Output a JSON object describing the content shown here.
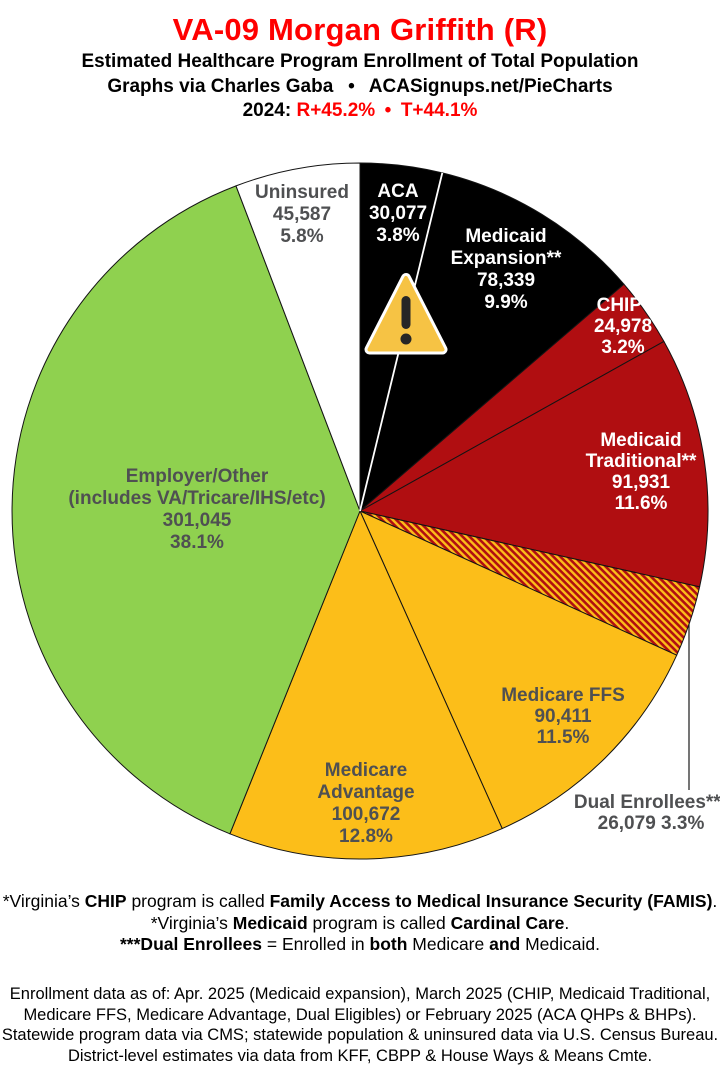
{
  "header": {
    "title": "VA-09 Morgan Griffith (R)",
    "subtitle": "Estimated Healthcare Program Enrollment of Total Population",
    "credit": "Graphs via Charles Gaba  •  ACASignups.net/PieCharts",
    "margins_segments": [
      {
        "text": "2024: ",
        "color": "#000000"
      },
      {
        "text": "R+45.2%",
        "color": "#FF0000"
      },
      {
        "text": " • ",
        "color": "#FF0000"
      },
      {
        "text": "T+44.1%",
        "color": "#FF0000"
      }
    ]
  },
  "chart_data": {
    "type": "pie",
    "title": "Estimated Healthcare Program Enrollment of Total Population",
    "direction": "clockwise",
    "start_angle_deg": 0,
    "legend": "none",
    "colors": {
      "black": "#000000",
      "dark_red": "#B00E11",
      "gold": "#FCBE19",
      "green": "#8FD14F",
      "white": "#FFFFFF",
      "dark_label_text": "#4F5052",
      "warning_amber": "#F6C344"
    },
    "slices": [
      {
        "id": "aca",
        "name": "ACA",
        "value": 30077,
        "value_label": "30,077",
        "pct": 3.8,
        "color": "#000000",
        "text_color": "#ffffff",
        "label_position": "inside",
        "label_lines": [
          "ACA",
          "30,077",
          "3.8%"
        ]
      },
      {
        "id": "medicaid-expansion",
        "name": "Medicaid Expansion**",
        "value": 78339,
        "value_label": "78,339",
        "pct": 9.9,
        "color": "#000000",
        "text_color": "#ffffff",
        "label_position": "inside",
        "label_lines": [
          "Medicaid",
          "Expansion**",
          "78,339",
          "9.9%"
        ]
      },
      {
        "id": "chip",
        "name": "CHIP*",
        "value": 24978,
        "value_label": "24,978",
        "pct": 3.2,
        "color": "#B00E11",
        "text_color": "#ffffff",
        "label_position": "inside",
        "label_lines": [
          "CHIP*",
          "24,978",
          "3.2%"
        ]
      },
      {
        "id": "medicaid-traditional",
        "name": "Medicaid Traditional**",
        "value": 91931,
        "value_label": "91,931",
        "pct": 11.6,
        "color": "#B00E11",
        "text_color": "#ffffff",
        "label_position": "inside",
        "label_lines": [
          "Medicaid",
          "Traditional**",
          "91,931",
          "11.6%"
        ]
      },
      {
        "id": "dual-enrollees",
        "name": "Dual Enrollees***",
        "value": 26079,
        "value_label": "26,079",
        "pct": 3.3,
        "color": "#B00E11",
        "pattern": "hatch",
        "pattern_colors": [
          "#B00E11",
          "#FCBE19"
        ],
        "text_color": "#4F5052",
        "label_position": "outside-callout",
        "label_lines": [
          "Dual Enrollees***",
          "26,079 3.3%"
        ]
      },
      {
        "id": "medicare-ffs",
        "name": "Medicare FFS",
        "value": 90411,
        "value_label": "90,411",
        "pct": 11.5,
        "color": "#FCBE19",
        "text_color": "#4F5052",
        "label_position": "inside",
        "label_lines": [
          "Medicare FFS",
          "90,411",
          "11.5%"
        ]
      },
      {
        "id": "medicare-advantage",
        "name": "Medicare Advantage",
        "value": 100672,
        "value_label": "100,672",
        "pct": 12.8,
        "color": "#FCBE19",
        "text_color": "#4F5052",
        "label_position": "inside",
        "label_lines": [
          "Medicare",
          "Advantage",
          "100,672",
          "12.8%"
        ]
      },
      {
        "id": "employer-other",
        "name": "Employer/Other (includes VA/Tricare/IHS/etc)",
        "value": 301045,
        "value_label": "301,045",
        "pct": 38.1,
        "color": "#8FD14F",
        "text_color": "#4F5052",
        "label_position": "inside",
        "label_lines": [
          "Employer/Other",
          "(includes VA/Tricare/IHS/etc)",
          "301,045",
          "38.1%"
        ]
      },
      {
        "id": "uninsured",
        "name": "Uninsured",
        "value": 45587,
        "value_label": "45,587",
        "pct": 5.8,
        "color": "#FFFFFF",
        "text_color": "#4F5052",
        "label_position": "inside",
        "label_lines": [
          "Uninsured",
          "45,587",
          "5.8%"
        ]
      }
    ],
    "annotations": {
      "warning_icon": {
        "symbol": "!",
        "fill": "#F6C344",
        "border": "#FFFFFF",
        "glyph_color": "#262626"
      }
    }
  },
  "footnotes": {
    "lines": [
      {
        "segments": [
          {
            "text": "*Virginia’s ",
            "bold": false
          },
          {
            "text": "CHIP",
            "bold": true
          },
          {
            "text": " program is called ",
            "bold": false
          },
          {
            "text": "Family Access to Medical Insurance Security (FAMIS)",
            "bold": true
          },
          {
            "text": ".",
            "bold": false
          }
        ]
      },
      {
        "segments": [
          {
            "text": "*Virginia’s ",
            "bold": false
          },
          {
            "text": "Medicaid",
            "bold": true
          },
          {
            "text": " program is called ",
            "bold": false
          },
          {
            "text": "Cardinal Care",
            "bold": true
          },
          {
            "text": ".",
            "bold": false
          }
        ]
      },
      {
        "segments": [
          {
            "text": "***Dual Enrollees",
            "bold": true
          },
          {
            "text": " = Enrolled in ",
            "bold": false
          },
          {
            "text": "both",
            "bold": true
          },
          {
            "text": " Medicare ",
            "bold": false
          },
          {
            "text": "and",
            "bold": true
          },
          {
            "text": " Medicaid.",
            "bold": false
          }
        ]
      }
    ]
  },
  "footer": {
    "lines": [
      "Enrollment data as of: Apr. 2025 (Medicaid expansion), March 2025 (CHIP, Medicaid Traditional,",
      "Medicare FFS, Medicare Advantage, Dual Eligibles) or February 2025 (ACA QHPs & BHPs).",
      "Statewide program data via CMS; statewide population & uninsured data via U.S. Census Bureau.",
      "District-level estimates via data from KFF, CBPP & House Ways & Means Cmte."
    ]
  }
}
